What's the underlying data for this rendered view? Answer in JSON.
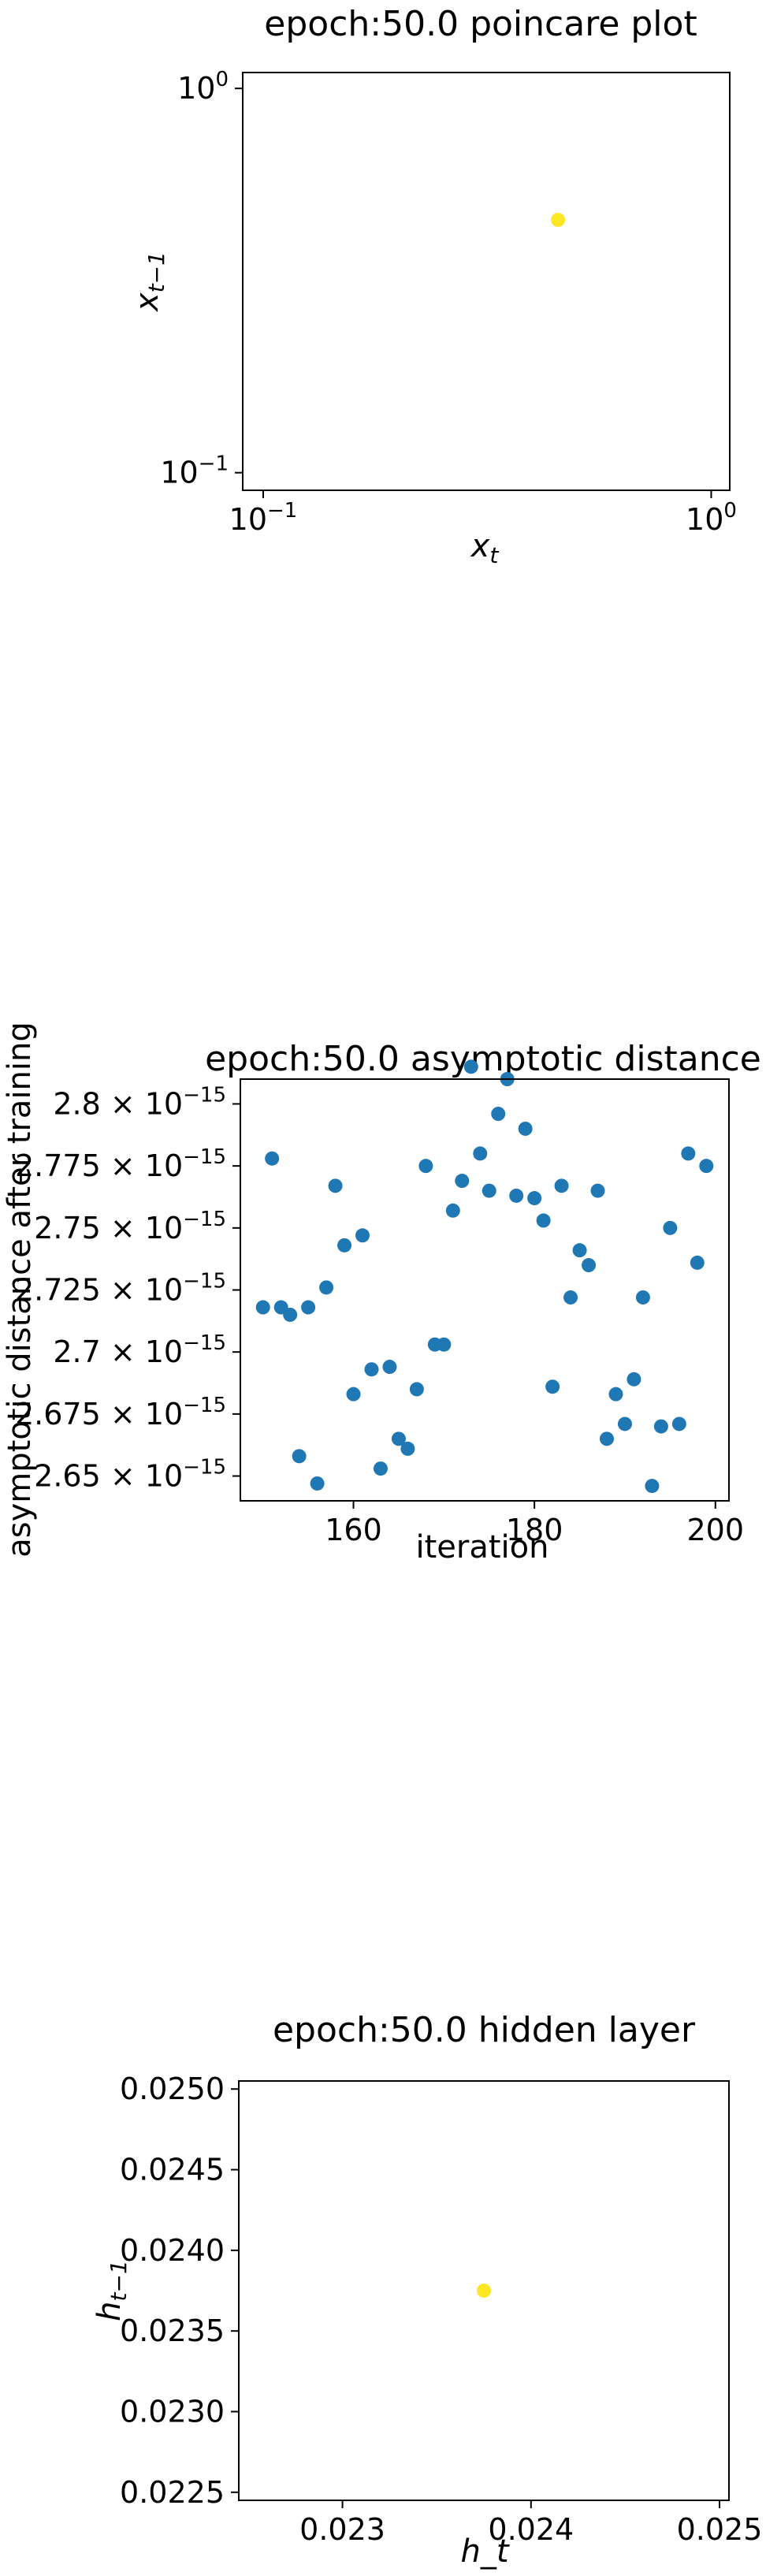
{
  "chart_data": [
    {
      "type": "scatter",
      "title": "epoch:50.0 poincare plot",
      "xlabel": "x_t",
      "ylabel": "x_{t−1}",
      "xscale": "log",
      "yscale": "log",
      "xlim": [
        0.09,
        1.1
      ],
      "ylim": [
        0.09,
        1.1
      ],
      "xticks": [
        {
          "value": 0.1,
          "label": "10",
          "exp": "−1"
        },
        {
          "value": 1.0,
          "label": "10",
          "exp": "0"
        }
      ],
      "yticks": [
        {
          "value": 0.1,
          "label": "10",
          "exp": "−1"
        },
        {
          "value": 1.0,
          "label": "10",
          "exp": "0"
        }
      ],
      "grid": false,
      "color": "#fde725",
      "points": [
        {
          "x": 0.455,
          "y": 0.455
        }
      ]
    },
    {
      "type": "scatter",
      "title": "epoch:50.0 asymptotic distance",
      "xlabel": "iteration",
      "ylabel": "asymptotic distance after training",
      "xlim": [
        147.5,
        201.5
      ],
      "ylim": [
        2.64e-15,
        2.81e-15
      ],
      "xticks": [
        {
          "value": 160,
          "label": "160"
        },
        {
          "value": 180,
          "label": "180"
        },
        {
          "value": 200,
          "label": "200"
        }
      ],
      "yticks": [
        {
          "value": 2.65e-15,
          "label": "2.65 × 10",
          "exp": "−15"
        },
        {
          "value": 2.675e-15,
          "label": "2.675 × 10",
          "exp": "−15"
        },
        {
          "value": 2.7e-15,
          "label": "2.7 × 10",
          "exp": "−15"
        },
        {
          "value": 2.725e-15,
          "label": "2.725 × 10",
          "exp": "−15"
        },
        {
          "value": 2.75e-15,
          "label": "2.75 × 10",
          "exp": "−15"
        },
        {
          "value": 2.775e-15,
          "label": "2.775 × 10",
          "exp": "−15"
        },
        {
          "value": 2.8e-15,
          "label": "2.8 × 10",
          "exp": "−15"
        }
      ],
      "grid": false,
      "color": "#1f77b4",
      "points": [
        {
          "x": 150,
          "y": 2.718e-15
        },
        {
          "x": 151,
          "y": 2.778e-15
        },
        {
          "x": 152,
          "y": 2.718e-15
        },
        {
          "x": 153,
          "y": 2.715e-15
        },
        {
          "x": 154,
          "y": 2.658e-15
        },
        {
          "x": 155,
          "y": 2.718e-15
        },
        {
          "x": 156,
          "y": 2.647e-15
        },
        {
          "x": 157,
          "y": 2.726e-15
        },
        {
          "x": 158,
          "y": 2.767e-15
        },
        {
          "x": 159,
          "y": 2.743e-15
        },
        {
          "x": 160,
          "y": 2.683e-15
        },
        {
          "x": 161,
          "y": 2.747e-15
        },
        {
          "x": 162,
          "y": 2.693e-15
        },
        {
          "x": 163,
          "y": 2.653e-15
        },
        {
          "x": 164,
          "y": 2.694e-15
        },
        {
          "x": 165,
          "y": 2.665e-15
        },
        {
          "x": 166,
          "y": 2.661e-15
        },
        {
          "x": 167,
          "y": 2.685e-15
        },
        {
          "x": 168,
          "y": 2.775e-15
        },
        {
          "x": 169,
          "y": 2.703e-15
        },
        {
          "x": 170,
          "y": 2.703e-15
        },
        {
          "x": 171,
          "y": 2.757e-15
        },
        {
          "x": 172,
          "y": 2.769e-15
        },
        {
          "x": 173,
          "y": 2.815e-15
        },
        {
          "x": 174,
          "y": 2.78e-15
        },
        {
          "x": 175,
          "y": 2.765e-15
        },
        {
          "x": 176,
          "y": 2.796e-15
        },
        {
          "x": 177,
          "y": 2.81e-15
        },
        {
          "x": 178,
          "y": 2.763e-15
        },
        {
          "x": 179,
          "y": 2.79e-15
        },
        {
          "x": 180,
          "y": 2.762e-15
        },
        {
          "x": 181,
          "y": 2.753e-15
        },
        {
          "x": 182,
          "y": 2.686e-15
        },
        {
          "x": 183,
          "y": 2.767e-15
        },
        {
          "x": 184,
          "y": 2.722e-15
        },
        {
          "x": 185,
          "y": 2.741e-15
        },
        {
          "x": 186,
          "y": 2.735e-15
        },
        {
          "x": 187,
          "y": 2.765e-15
        },
        {
          "x": 188,
          "y": 2.665e-15
        },
        {
          "x": 189,
          "y": 2.683e-15
        },
        {
          "x": 190,
          "y": 2.671e-15
        },
        {
          "x": 191,
          "y": 2.689e-15
        },
        {
          "x": 192,
          "y": 2.722e-15
        },
        {
          "x": 193,
          "y": 2.646e-15
        },
        {
          "x": 194,
          "y": 2.67e-15
        },
        {
          "x": 195,
          "y": 2.75e-15
        },
        {
          "x": 196,
          "y": 2.671e-15
        },
        {
          "x": 197,
          "y": 2.78e-15
        },
        {
          "x": 198,
          "y": 2.736e-15
        },
        {
          "x": 199,
          "y": 2.775e-15
        }
      ]
    },
    {
      "type": "scatter",
      "title": "epoch:50.0 hidden layer",
      "xlabel": "h_t",
      "ylabel": "h_{t−1}",
      "xlim": [
        0.02245,
        0.02505
      ],
      "ylim": [
        0.02245,
        0.02505
      ],
      "xticks": [
        {
          "value": 0.023,
          "label": "0.023"
        },
        {
          "value": 0.024,
          "label": "0.024"
        },
        {
          "value": 0.025,
          "label": "0.025"
        }
      ],
      "yticks": [
        {
          "value": 0.0225,
          "label": "0.0225"
        },
        {
          "value": 0.023,
          "label": "0.0230"
        },
        {
          "value": 0.0235,
          "label": "0.0235"
        },
        {
          "value": 0.024,
          "label": "0.0240"
        },
        {
          "value": 0.0245,
          "label": "0.0245"
        },
        {
          "value": 0.025,
          "label": "0.0250"
        }
      ],
      "grid": false,
      "color": "#fde725",
      "points": [
        {
          "x": 0.02375,
          "y": 0.02375
        }
      ]
    }
  ]
}
